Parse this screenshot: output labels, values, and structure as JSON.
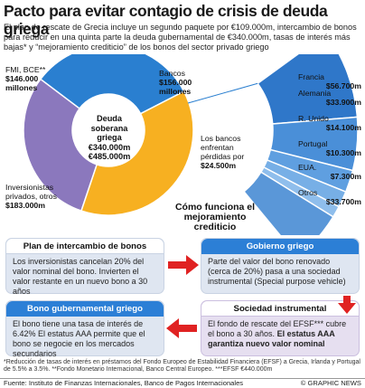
{
  "title": "Pacto para evitar contagio de crisis de deuda griega",
  "intro": "El plan de rescate de Grecia incluye un segundo paquete por €109.000m, intercambio de bonos para reducir en una quinta parte la deuda gubernamental de €340.000m, tasas de interés más bajas* y “mejoramiento crediticio” de los bonos del sector privado griego",
  "chart_data": {
    "type": "pie",
    "center_label": "Deuda soberana griega",
    "center_value1": "€340.000m",
    "center_value2": "€485.000m",
    "slices": [
      {
        "name": "FMI, BCE**",
        "value_label": "$146.000 millones",
        "value": 146000,
        "color": "#8b78bd"
      },
      {
        "name": "Bancos",
        "value_label": "$156.000 millones",
        "value": 156000,
        "color": "#2a7fd0"
      },
      {
        "name": "Inversionistas privados, otros",
        "value_label": "$183.000m",
        "value": 183000,
        "color": "#f7b021"
      }
    ],
    "banks_label": "Los bancos enfrentan pérdidas por",
    "banks_loss": "$24.500m",
    "breakdown": [
      {
        "name": "Francia",
        "value_label": "$56.700m",
        "value": 56700,
        "color": "#2f77c9"
      },
      {
        "name": "Alemania",
        "value_label": "$33.900m",
        "value": 33900,
        "color": "#4a8fd8"
      },
      {
        "name": "R. Unido",
        "value_label": "$14.100m",
        "value": 14100,
        "color": "#5f9fe0"
      },
      {
        "name": "Portugal",
        "value_label": "$10.300m",
        "value": 10300,
        "color": "#77afe6"
      },
      {
        "name": "EUA.",
        "value_label": "$7.300m",
        "value": 7300,
        "color": "#8fbeec"
      },
      {
        "name": "Otros",
        "value_label": "$33.700m",
        "value": 33700,
        "color": "#5a97d8"
      }
    ]
  },
  "flow_title": "Cómo funciona el mejoramiento crediticio",
  "boxes": {
    "plan": {
      "head": "Plan de intercambio de bonos",
      "body": "Los inversionistas cancelan 20% del valor nominal del bono. Invierten el valor restante en un nuevo bono a 30 años"
    },
    "gobierno": {
      "head": "Gobierno griego",
      "body": "Parte del valor del bono renovado (cerca de 20%) pasa a una sociedad instrumental (Special purpose vehicle)"
    },
    "sociedad": {
      "head": "Sociedad instrumental",
      "body1": "El fondo de rescate del EFSF*** cubre el bono a 30 años.",
      "body2": "El estatus AAA garantiza nuevo valor nominal"
    },
    "bono": {
      "head": "Bono gubernamental griego",
      "body": "El bono tiene una tasa de interés de 6.42% El estatus AAA permite que el bono se negocie en los mercados secundarios"
    }
  },
  "footnotes": {
    "note1": "*Reducción de tasas de interés en préstamos del Fondo Europeo de Estabilidad Financiera (EFSF) a Grecia, Irlanda y Portugal de 5.5% a 3.5%.",
    "note2": "**Fondo Monetario Internacional, Banco Central Europeo.",
    "note3": "***EFSF €440.000m",
    "source": "Fuente: Instituto de Finanzas Internacionales, Banco de Pagos Internacionales",
    "credit": "© GRAPHIC NEWS"
  },
  "colors": {
    "purple": "#8b78bd",
    "blue": "#2a7fd0",
    "orange": "#f7b021",
    "red": "#e02222"
  }
}
